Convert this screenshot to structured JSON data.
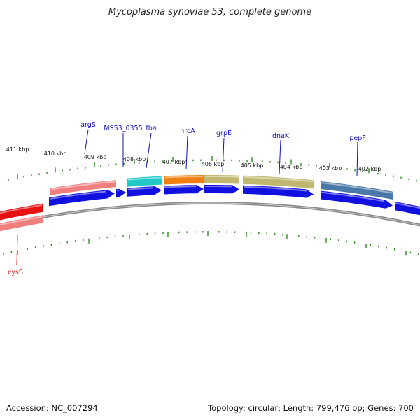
{
  "title": "Mycoplasma synoviae 53, complete genome",
  "footer": {
    "accession": "Accession: NC_007294",
    "summary": "Topology: circular; Length: 799,476 bp; Genes: 700"
  },
  "colors": {
    "background": "#ffffff",
    "backbone": "#888888",
    "ticks": "#2e8b22",
    "cds_forward": "#1010e0",
    "label_forward": "#1010c0",
    "label_reverse": "#dd1111"
  },
  "scale": {
    "labels": [
      "411 kbp",
      "410 kbp",
      "409 kbp",
      "408 kbp",
      "407 kbp",
      "406 kbp",
      "405 kbp",
      "404 kbp",
      "403 kbp",
      "402 kbp"
    ]
  },
  "genes": [
    {
      "name": "argS",
      "strand": "+",
      "color": "#f08080"
    },
    {
      "name": "MS53_0355",
      "strand": "+",
      "color": ""
    },
    {
      "name": "fba",
      "strand": "+",
      "color": "#20c8c8"
    },
    {
      "name": "hrcA",
      "strand": "+",
      "color": "#f08010"
    },
    {
      "name": "grpE",
      "strand": "+",
      "color": "#c0b870"
    },
    {
      "name": "dnaK",
      "strand": "+",
      "color": "#c0b870"
    },
    {
      "name": "pepF",
      "strand": "+",
      "color": "#4a78a8"
    },
    {
      "name": "cysS",
      "strand": "-",
      "color": "#e81010"
    }
  ]
}
